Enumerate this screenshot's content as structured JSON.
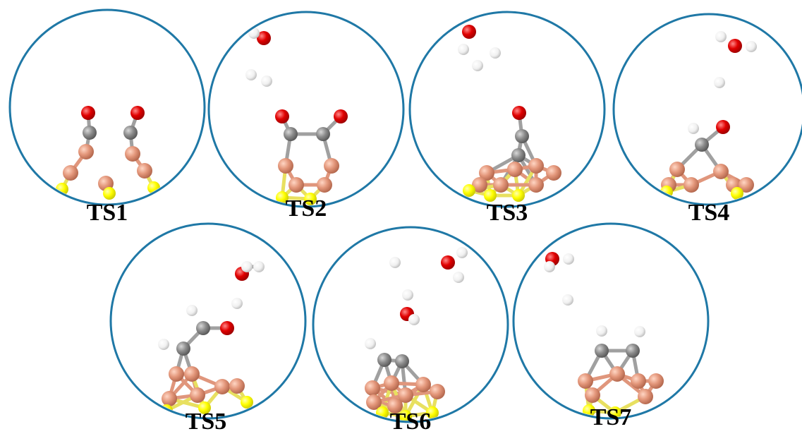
{
  "panels": [
    {
      "label": "TS1"
    },
    {
      "label": "TS2"
    },
    {
      "label": "TS3"
    },
    {
      "label": "TS4"
    },
    {
      "label": "TS5"
    },
    {
      "label": "TS6"
    },
    {
      "label": "TS7"
    }
  ]
}
